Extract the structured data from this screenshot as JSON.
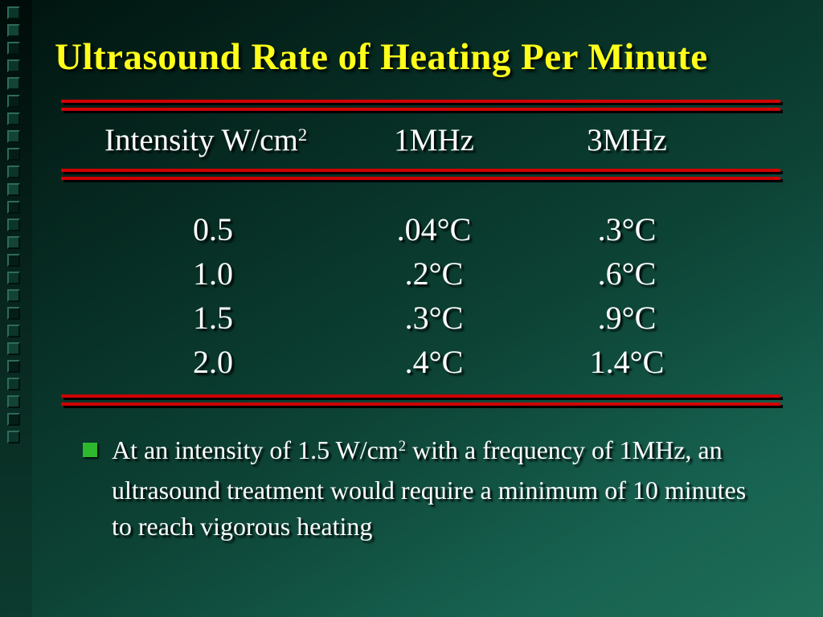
{
  "slide": {
    "title": "Ultrasound Rate of Heating Per Minute",
    "table": {
      "header": {
        "intensity_label": "Intensity W/cm",
        "intensity_sup": "2",
        "col_1mhz": "1MHz",
        "col_3mhz": "3MHz"
      },
      "rows": [
        {
          "intensity": "0.5",
          "c1mhz": ".04°C",
          "c3mhz": ".3°C"
        },
        {
          "intensity": "1.0",
          "c1mhz": ".2°C",
          "c3mhz": ".6°C"
        },
        {
          "intensity": "1.5",
          "c1mhz": ".3°C",
          "c3mhz": ".9°C"
        },
        {
          "intensity": "2.0",
          "c1mhz": ".4°C",
          "c3mhz": "1.4°C"
        }
      ]
    },
    "bullet": {
      "part1": "At an intensity of 1.5 W/cm",
      "sup": "2",
      "part2": " with a frequency of 1MHz, an ultrasound treatment would require a minimum of 10 minutes to reach vigorous heating"
    },
    "colors": {
      "title_yellow": "#ffff1a",
      "line_red": "#cf0000",
      "body_white": "#ffffff",
      "bullet_green": "#2eb82e",
      "background_dark": "#01140f",
      "background_light": "#1e6f58"
    }
  }
}
